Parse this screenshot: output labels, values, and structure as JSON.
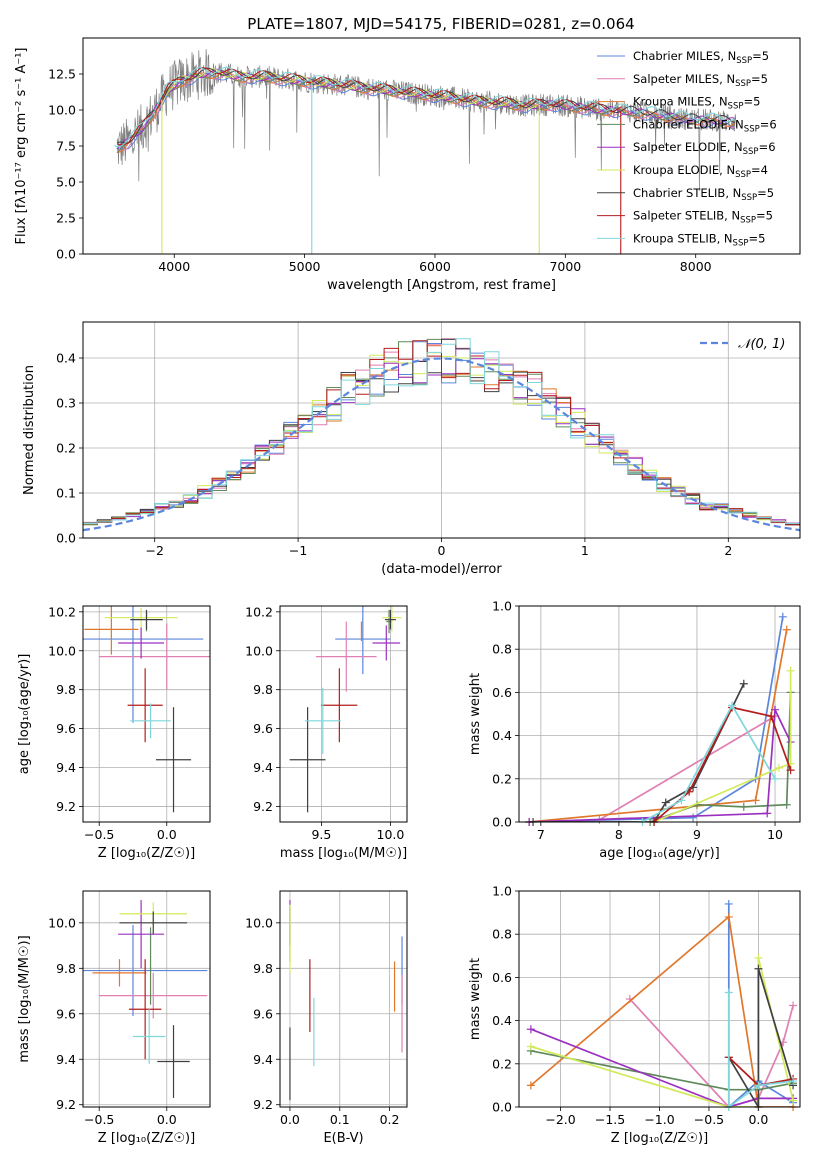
{
  "figure": {
    "title": "PLATE=1807, MJD=54175, FIBERID=0281, z=0.064"
  },
  "colors": {
    "Chabrier MILES": "#5b86dd",
    "Salpeter MILES": "#e07fb2",
    "Kroupa MILES": "#e0772b",
    "Chabrier ELODIE": "#5f8a5a",
    "Salpeter ELODIE": "#9b30c0",
    "Kroupa ELODIE": "#d2ea5a",
    "Chabrier STELIB": "#404040",
    "Salpeter STELIB": "#b51d1d",
    "Kroupa STELIB": "#7fd7dc",
    "data": "#7f7f7f",
    "normal_curve": "#5b86dd"
  },
  "chart_data": [
    {
      "id": "spectrum",
      "type": "line",
      "xlabel": "wavelength [Angstrom, rest frame]",
      "ylabel": "Flux [f$_\\lambda$10$^{-17}$ erg cm$^{-2}$ s$^{-1}$ A$^{-1}$]",
      "ylabel_display": "Flux [fλ10⁻¹⁷ erg cm⁻² s⁻¹ A⁻¹]",
      "xlim": [
        3300,
        8800
      ],
      "ylim": [
        0,
        15
      ],
      "xticks": [
        4000,
        5000,
        6000,
        7000,
        8000
      ],
      "yticks": [
        0.0,
        2.5,
        5.0,
        7.5,
        10.0,
        12.5
      ],
      "ytick_labels": [
        "0.0",
        "2.5",
        "5.0",
        "7.5",
        "10.0",
        "12.5"
      ],
      "legend_placement": "upper-right",
      "legend": [
        {
          "label": "Chabrier MILES, N",
          "sub": "SSP",
          "tail": "=5",
          "series": "Chabrier MILES"
        },
        {
          "label": "Salpeter MILES, N",
          "sub": "SSP",
          "tail": "=5",
          "series": "Salpeter MILES"
        },
        {
          "label": "Kroupa MILES, N",
          "sub": "SSP",
          "tail": "=5",
          "series": "Kroupa MILES"
        },
        {
          "label": "Chabrier ELODIE, N",
          "sub": "SSP",
          "tail": "=6",
          "series": "Chabrier ELODIE"
        },
        {
          "label": "Salpeter ELODIE, N",
          "sub": "SSP",
          "tail": "=6",
          "series": "Salpeter ELODIE"
        },
        {
          "label": "Kroupa ELODIE, N",
          "sub": "SSP",
          "tail": "=4",
          "series": "Kroupa ELODIE"
        },
        {
          "label": "Chabrier STELIB, N",
          "sub": "SSP",
          "tail": "=5",
          "series": "Chabrier STELIB"
        },
        {
          "label": "Salpeter STELIB, N",
          "sub": "SSP",
          "tail": "=5",
          "series": "Salpeter STELIB"
        },
        {
          "label": "Kroupa STELIB, N",
          "sub": "SSP",
          "tail": "=5",
          "series": "Kroupa STELIB"
        }
      ],
      "continuum_knots": {
        "x": [
          3550,
          3650,
          3750,
          3850,
          3950,
          4050,
          4200,
          4350,
          4500,
          4700,
          4900,
          5100,
          5300,
          5500,
          5700,
          5900,
          6100,
          6300,
          6500,
          6700,
          6900,
          7100,
          7300,
          7500,
          7700,
          7900,
          8100,
          8300
        ],
        "y": [
          7.3,
          7.8,
          8.7,
          9.9,
          11.4,
          12.0,
          12.5,
          12.6,
          12.3,
          12.3,
          12.1,
          11.9,
          11.7,
          11.5,
          11.3,
          11.1,
          10.9,
          10.6,
          10.5,
          10.3,
          10.4,
          10.2,
          10.0,
          9.9,
          9.7,
          9.4,
          9.3,
          9.2
        ]
      },
      "data_noise_amplitude": 1.6,
      "model_cutoffs": [
        {
          "series": "Kroupa ELODIE",
          "x_from": 3310,
          "x_to": 3905,
          "x_stop": 6800
        },
        {
          "series": "Salpeter STELIB",
          "x_from": 3560,
          "x_to": 3560,
          "x_stop": 7430
        },
        {
          "series": "Kroupa STELIB",
          "x_from": 3540,
          "x_to": 3540,
          "x_stop": 8300
        }
      ],
      "absorption_dips": [
        {
          "series": "Kroupa ELODIE",
          "x": 3905,
          "y": 0.0
        },
        {
          "series": "Kroupa STELIB",
          "x": 5055,
          "y": 0.0
        },
        {
          "series": "Kroupa ELODIE",
          "x": 6800,
          "y": 0.0
        },
        {
          "series": "Salpeter STELIB",
          "x": 7425,
          "y": 0.0
        }
      ]
    },
    {
      "id": "residuals",
      "type": "step",
      "xlabel": "(data-model)/error",
      "ylabel": "Normed distribution",
      "xlim": [
        -2.5,
        2.5
      ],
      "ylim": [
        0,
        0.48
      ],
      "xticks": [
        -2,
        -1,
        0,
        1,
        2
      ],
      "xtick_labels": [
        "−2",
        "−1",
        "0",
        "1",
        "2"
      ],
      "yticks": [
        0.0,
        0.1,
        0.2,
        0.3,
        0.4
      ],
      "ytick_labels": [
        "0.0",
        "0.1",
        "0.2",
        "0.3",
        "0.4"
      ],
      "grid": true,
      "legend_placement": "upper-right",
      "normal_curve_label": "𝒩(0, 1)",
      "bin_width": 0.1,
      "bin_start": -2.5,
      "series_order": [
        "Chabrier MILES",
        "Salpeter MILES",
        "Kroupa MILES",
        "Chabrier ELODIE",
        "Salpeter ELODIE",
        "Kroupa ELODIE",
        "Chabrier STELIB",
        "Salpeter STELIB",
        "Kroupa STELIB"
      ]
    },
    {
      "id": "age_vs_Z",
      "type": "errorbar",
      "xlabel": "Z [log$_{10}$(Z/Z$_\\odot$)]",
      "xlabel_display": "Z [log₁₀(Z/Z☉)]",
      "ylabel": "age  [log$_{10}$(age/yr)]",
      "ylabel_display": "age  [log₁₀(age/yr)]",
      "xlim": [
        -0.62,
        0.32
      ],
      "ylim": [
        9.12,
        10.23
      ],
      "xticks": [
        -0.5,
        0.0
      ],
      "xtick_labels": [
        "−0.5",
        "0.0"
      ],
      "yticks": [
        9.2,
        9.4,
        9.6,
        9.8,
        10.0,
        10.2
      ],
      "ytick_labels": [
        "9.2",
        "9.4",
        "9.6",
        "9.8",
        "10.0",
        "10.2"
      ],
      "points": [
        {
          "series": "Chabrier MILES",
          "x": -0.25,
          "xerr": 0.52,
          "y": 10.06,
          "yerr": 0.43
        },
        {
          "series": "Salpeter MILES",
          "x": 0.0,
          "xerr": 0.5,
          "y": 9.97,
          "yerr": 0.17
        },
        {
          "series": "Kroupa MILES",
          "x": -0.41,
          "xerr": 0.2,
          "y": 10.11,
          "yerr": 0.13
        },
        {
          "series": "Chabrier ELODIE",
          "x": -0.15,
          "xerr": 0.0,
          "y": 10.15,
          "yerr": 0.05
        },
        {
          "series": "Salpeter ELODIE",
          "x": -0.19,
          "xerr": 0.17,
          "y": 10.04,
          "yerr": 0.08
        },
        {
          "series": "Kroupa ELODIE",
          "x": -0.19,
          "xerr": 0.27,
          "y": 10.17,
          "yerr": 0.05
        },
        {
          "series": "Chabrier STELIB",
          "x": 0.05,
          "xerr": 0.13,
          "y": 9.44,
          "yerr": 0.27
        },
        {
          "series": "Salpeter STELIB",
          "x": -0.16,
          "xerr": 0.13,
          "y": 9.72,
          "yerr": 0.19
        },
        {
          "series": "Kroupa STELIB",
          "x": -0.12,
          "xerr": 0.15,
          "y": 9.64,
          "yerr": 0.09
        },
        {
          "series": "Chabrier STELIB",
          "x": -0.15,
          "xerr": 0.12,
          "y": 10.16,
          "yerr": 0.05
        }
      ]
    },
    {
      "id": "age_vs_mass",
      "type": "errorbar",
      "xlabel": "mass [log$_{10}$(M/M$_\\odot$)]",
      "xlabel_display": "mass [log₁₀(M/M☉)]",
      "xlim": [
        9.2,
        10.12
      ],
      "ylim": [
        9.12,
        10.23
      ],
      "xticks": [
        9.5,
        10.0
      ],
      "xtick_labels": [
        "9.5",
        "10.0"
      ],
      "yticks": [
        9.2,
        9.4,
        9.6,
        9.8,
        10.0,
        10.2
      ],
      "ytick_labels": [
        "9.2",
        "9.4",
        "9.6",
        "9.8",
        "10.0",
        "10.2"
      ],
      "points": [
        {
          "series": "Chabrier MILES",
          "x": 9.8,
          "xerr": 0.2,
          "y": 10.06,
          "yerr": 0.18
        },
        {
          "series": "Salpeter MILES",
          "x": 9.68,
          "xerr": 0.22,
          "y": 9.97,
          "yerr": 0.18
        },
        {
          "series": "Kroupa MILES",
          "x": 9.79,
          "xerr": 0.0,
          "y": 10.1,
          "yerr": 0.05
        },
        {
          "series": "Chabrier ELODIE",
          "x": 9.99,
          "xerr": 0.02,
          "y": 10.15,
          "yerr": 0.06
        },
        {
          "series": "Salpeter ELODIE",
          "x": 9.97,
          "xerr": 0.1,
          "y": 10.04,
          "yerr": 0.09
        },
        {
          "series": "Kroupa ELODIE",
          "x": 10.01,
          "xerr": 0.07,
          "y": 10.17,
          "yerr": 0.07
        },
        {
          "series": "Chabrier STELIB",
          "x": 9.4,
          "xerr": 0.13,
          "y": 9.44,
          "yerr": 0.27
        },
        {
          "series": "Salpeter STELIB",
          "x": 9.63,
          "xerr": 0.13,
          "y": 9.72,
          "yerr": 0.19
        },
        {
          "series": "Kroupa STELIB",
          "x": 9.51,
          "xerr": 0.13,
          "y": 9.64,
          "yerr": 0.17
        },
        {
          "series": "Chabrier STELIB",
          "x": 10.0,
          "xerr": 0.04,
          "y": 10.16,
          "yerr": 0.05
        }
      ]
    },
    {
      "id": "weight_vs_age",
      "type": "line",
      "xlabel": "age  [log$_{10}$(age/yr)]",
      "xlabel_display": "age  [log₁₀(age/yr)]",
      "ylabel": "mass weight",
      "xlim": [
        6.72,
        10.32
      ],
      "ylim": [
        0,
        1.0
      ],
      "xticks": [
        7,
        8,
        9,
        10
      ],
      "yticks": [
        0.0,
        0.2,
        0.4,
        0.6,
        0.8,
        1.0
      ],
      "ytick_labels": [
        "0.0",
        "0.2",
        "0.4",
        "0.6",
        "0.8",
        "1.0"
      ],
      "grid": true,
      "series": [
        {
          "name": "Chabrier MILES",
          "x": [
            6.85,
            8.95,
            9.75,
            10.1
          ],
          "y": [
            0.0,
            0.02,
            0.2,
            0.95
          ]
        },
        {
          "name": "Salpeter MILES",
          "x": [
            7.75,
            10.0
          ],
          "y": [
            0.01,
            0.49
          ]
        },
        {
          "name": "Kroupa MILES",
          "x": [
            6.85,
            9.75,
            10.15
          ],
          "y": [
            0.0,
            0.1,
            0.89
          ]
        },
        {
          "name": "Chabrier ELODIE",
          "x": [
            8.4,
            9.0,
            9.6,
            10.15,
            10.2
          ],
          "y": [
            0.0,
            0.08,
            0.07,
            0.08,
            0.6
          ]
        },
        {
          "name": "Salpeter ELODIE",
          "x": [
            6.85,
            9.9,
            10.0,
            10.2
          ],
          "y": [
            0.0,
            0.04,
            0.52,
            0.37
          ]
        },
        {
          "name": "Kroupa ELODIE",
          "x": [
            8.45,
            10.05,
            10.2,
            10.2
          ],
          "y": [
            0.0,
            0.25,
            0.27,
            0.7
          ]
        },
        {
          "name": "Chabrier STELIB",
          "x": [
            6.9,
            8.45,
            8.6,
            8.95,
            9.6
          ],
          "y": [
            0.0,
            0.0,
            0.09,
            0.16,
            0.64
          ]
        },
        {
          "name": "Salpeter STELIB",
          "x": [
            8.45,
            8.9,
            9.45,
            9.95,
            10.2
          ],
          "y": [
            0.0,
            0.14,
            0.53,
            0.49,
            0.24
          ]
        },
        {
          "name": "Kroupa STELIB",
          "x": [
            8.3,
            8.8,
            9.45,
            10.0
          ],
          "y": [
            0.0,
            0.1,
            0.54,
            0.2
          ]
        }
      ]
    },
    {
      "id": "mass_vs_Z",
      "type": "errorbar",
      "xlabel": "Z [log$_{10}$(Z/Z$_\\odot$)]",
      "xlabel_display": "Z [log₁₀(Z/Z☉)]",
      "ylabel": "mass [log$_{10}$(M/M$_\\odot$)]",
      "ylabel_display": "mass [log₁₀(M/M☉)]",
      "xlim": [
        -0.62,
        0.32
      ],
      "ylim": [
        9.19,
        10.14
      ],
      "xticks": [
        -0.5,
        0.0
      ],
      "xtick_labels": [
        "−0.5",
        "0.0"
      ],
      "yticks": [
        9.2,
        9.4,
        9.6,
        9.8,
        10.0
      ],
      "ytick_labels": [
        "9.2",
        "9.4",
        "9.6",
        "9.8",
        "10.0"
      ],
      "points": [
        {
          "series": "Chabrier MILES",
          "x": -0.25,
          "xerr": 0.55,
          "y": 9.79,
          "yerr": 0.2
        },
        {
          "series": "Salpeter MILES",
          "x": -0.1,
          "xerr": 0.4,
          "y": 9.68,
          "yerr": 0.1
        },
        {
          "series": "Kroupa MILES",
          "x": -0.35,
          "xerr": 0.2,
          "y": 9.78,
          "yerr": 0.06
        },
        {
          "series": "Chabrier ELODIE",
          "x": -0.12,
          "xerr": 0.0,
          "y": 9.81,
          "yerr": 0.17
        },
        {
          "series": "Salpeter ELODIE",
          "x": -0.19,
          "xerr": 0.17,
          "y": 9.95,
          "yerr": 0.15
        },
        {
          "series": "Kroupa ELODIE",
          "x": -0.1,
          "xerr": 0.25,
          "y": 10.04,
          "yerr": 0.05
        },
        {
          "series": "Chabrier STELIB",
          "x": 0.05,
          "xerr": 0.12,
          "y": 9.39,
          "yerr": 0.16
        },
        {
          "series": "Salpeter STELIB",
          "x": -0.16,
          "xerr": 0.12,
          "y": 9.62,
          "yerr": 0.22
        },
        {
          "series": "Kroupa STELIB",
          "x": -0.13,
          "xerr": 0.12,
          "y": 9.5,
          "yerr": 0.12
        },
        {
          "series": "Chabrier STELIB",
          "x": -0.1,
          "xerr": 0.25,
          "y": 10.0,
          "yerr": 0.05
        }
      ]
    },
    {
      "id": "mass_vs_ebv",
      "type": "errorbar",
      "xlabel": "E(B-V)",
      "xlim": [
        -0.02,
        0.235
      ],
      "ylim": [
        9.19,
        10.14
      ],
      "xticks": [
        0.0,
        0.1,
        0.2
      ],
      "xtick_labels": [
        "0.0",
        "0.1",
        "0.2"
      ],
      "yticks": [
        9.2,
        9.4,
        9.6,
        9.8,
        10.0
      ],
      "ytick_labels": [
        "9.2",
        "9.4",
        "9.6",
        "9.8",
        "10.0"
      ],
      "points": [
        {
          "series": "Chabrier MILES",
          "x": 0.225,
          "xerr": 0.0,
          "y": 9.79,
          "yerr": 0.15
        },
        {
          "series": "Salpeter MILES",
          "x": 0.225,
          "xerr": 0.0,
          "y": 9.6,
          "yerr": 0.17
        },
        {
          "series": "Kroupa MILES",
          "x": 0.21,
          "xerr": 0.0,
          "y": 9.72,
          "yerr": 0.11
        },
        {
          "series": "Chabrier ELODIE",
          "x": 0.0,
          "xerr": 0.0,
          "y": 9.95,
          "yerr": 0.12
        },
        {
          "series": "Salpeter ELODIE",
          "x": 0.0,
          "xerr": 0.0,
          "y": 10.0,
          "yerr": 0.1
        },
        {
          "series": "Kroupa ELODIE",
          "x": 0.0,
          "xerr": 0.0,
          "y": 9.93,
          "yerr": 0.15
        },
        {
          "series": "Chabrier STELIB",
          "x": 0.0,
          "xerr": 0.0,
          "y": 9.38,
          "yerr": 0.16
        },
        {
          "series": "Salpeter STELIB",
          "x": 0.04,
          "xerr": 0.0,
          "y": 9.68,
          "yerr": 0.16
        },
        {
          "series": "Kroupa STELIB",
          "x": 0.048,
          "xerr": 0.0,
          "y": 9.52,
          "yerr": 0.15
        }
      ]
    },
    {
      "id": "weight_vs_Z",
      "type": "line",
      "xlabel": "Z [log$_{10}$(Z/Z$_\\odot$)]",
      "xlabel_display": "Z [log₁₀(Z/Z☉)]",
      "ylabel": "mass weight",
      "xlim": [
        -2.42,
        0.42
      ],
      "ylim": [
        0,
        1.0
      ],
      "xticks": [
        -2.0,
        -1.5,
        -1.0,
        -0.5,
        0.0
      ],
      "xtick_labels": [
        "−2.0",
        "−1.5",
        "−1.0",
        "−0.5",
        "0.0"
      ],
      "yticks": [
        0.0,
        0.2,
        0.4,
        0.6,
        0.8,
        1.0
      ],
      "ytick_labels": [
        "0.0",
        "0.2",
        "0.4",
        "0.6",
        "0.8",
        "1.0"
      ],
      "grid": true,
      "series": [
        {
          "name": "Chabrier MILES",
          "x": [
            -0.3,
            -0.3,
            0.0,
            0.35
          ],
          "y": [
            0.94,
            0.0,
            0.12,
            0.02
          ]
        },
        {
          "name": "Salpeter MILES",
          "x": [
            -1.3,
            -0.3,
            0.0,
            0.25,
            0.35
          ],
          "y": [
            0.5,
            0.0,
            0.04,
            0.3,
            0.47
          ]
        },
        {
          "name": "Kroupa MILES",
          "x": [
            -2.3,
            -0.3,
            0.0,
            0.35
          ],
          "y": [
            0.1,
            0.88,
            0.0,
            0.0
          ]
        },
        {
          "name": "Chabrier ELODIE",
          "x": [
            -2.3,
            -0.3,
            0.0,
            0.35
          ],
          "y": [
            0.26,
            0.08,
            0.08,
            0.11
          ]
        },
        {
          "name": "Salpeter ELODIE",
          "x": [
            -2.3,
            -0.3,
            0.0,
            0.35
          ],
          "y": [
            0.36,
            0.0,
            0.04,
            0.04
          ]
        },
        {
          "name": "Kroupa ELODIE",
          "x": [
            -2.3,
            -0.3,
            0.0,
            0.0,
            0.35
          ],
          "y": [
            0.28,
            0.0,
            0.0,
            0.69,
            0.03
          ]
        },
        {
          "name": "Chabrier STELIB",
          "x": [
            -0.3,
            0.0,
            0.0,
            0.35
          ],
          "y": [
            0.23,
            0.0,
            0.64,
            0.1
          ]
        },
        {
          "name": "Salpeter STELIB",
          "x": [
            -0.3,
            0.0,
            0.35
          ],
          "y": [
            0.23,
            0.1,
            0.13
          ]
        },
        {
          "name": "Kroupa STELIB",
          "x": [
            -0.3,
            -0.3,
            0.0,
            0.35
          ],
          "y": [
            0.53,
            0.0,
            0.1,
            0.12
          ]
        }
      ]
    }
  ]
}
